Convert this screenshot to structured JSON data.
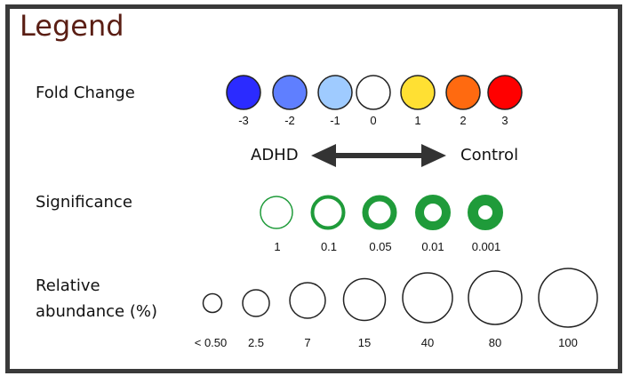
{
  "title": "Legend",
  "fold_change": {
    "label": "Fold Change",
    "items": [
      {
        "value": "-3",
        "color": "#2b2bff"
      },
      {
        "value": "-2",
        "color": "#5f7fff"
      },
      {
        "value": "-1",
        "color": "#9fcbff"
      },
      {
        "value": "0",
        "color": "#ffffff"
      },
      {
        "value": "1",
        "color": "#ffe033"
      },
      {
        "value": "2",
        "color": "#ff6a10"
      },
      {
        "value": "3",
        "color": "#ff0000"
      }
    ],
    "left_label": "ADHD",
    "right_label": "Control"
  },
  "significance": {
    "label": "Significance",
    "color": "#1f9b3a",
    "items": [
      "1",
      "0.1",
      "0.05",
      "0.01",
      "0.001"
    ]
  },
  "abundance": {
    "label_line1": "Relative",
    "label_line2": "abundance (%)",
    "items": [
      "< 0.50",
      "2.5",
      "7",
      "15",
      "40",
      "80",
      "100"
    ]
  }
}
